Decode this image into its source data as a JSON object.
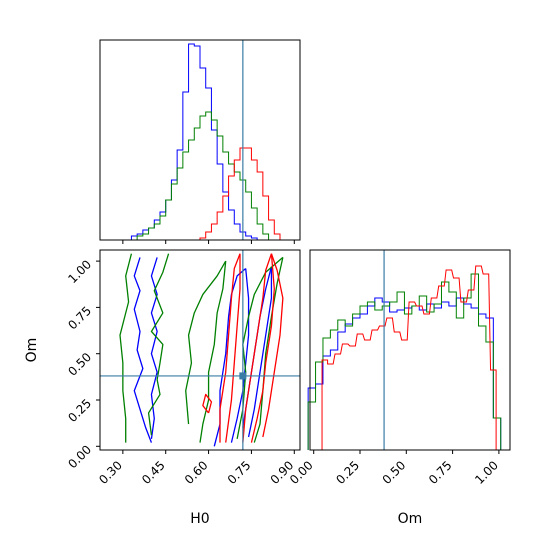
{
  "chart_data": [
    {
      "panel": "H0 marginal",
      "type": "step-histogram",
      "xlim": [
        0.22,
        0.92
      ],
      "truth_x": 0.72,
      "series": [
        {
          "color": "#0000ff",
          "x": [
            0.34,
            0.36,
            0.38,
            0.4,
            0.42,
            0.44,
            0.46,
            0.48,
            0.5,
            0.52,
            0.54,
            0.56,
            0.58,
            0.6,
            0.62,
            0.64,
            0.66,
            0.68,
            0.7,
            0.72,
            0.74,
            0.76
          ],
          "values": [
            0.02,
            0.03,
            0.05,
            0.06,
            0.1,
            0.14,
            0.2,
            0.3,
            0.45,
            0.74,
            0.98,
            0.97,
            0.86,
            0.76,
            0.55,
            0.38,
            0.24,
            0.15,
            0.08,
            0.04,
            0.02,
            0.01
          ]
        },
        {
          "color": "#008000",
          "x": [
            0.36,
            0.38,
            0.4,
            0.42,
            0.44,
            0.46,
            0.48,
            0.5,
            0.52,
            0.54,
            0.56,
            0.58,
            0.6,
            0.62,
            0.64,
            0.66,
            0.68,
            0.7,
            0.72,
            0.74,
            0.76,
            0.78,
            0.8
          ],
          "values": [
            0.02,
            0.03,
            0.06,
            0.08,
            0.12,
            0.2,
            0.28,
            0.36,
            0.44,
            0.5,
            0.56,
            0.62,
            0.64,
            0.6,
            0.52,
            0.44,
            0.38,
            0.34,
            0.3,
            0.24,
            0.16,
            0.08,
            0.03
          ]
        },
        {
          "color": "#ff0000",
          "x": [
            0.58,
            0.6,
            0.62,
            0.64,
            0.66,
            0.68,
            0.7,
            0.72,
            0.74,
            0.76,
            0.78,
            0.8,
            0.82,
            0.84
          ],
          "values": [
            0.01,
            0.04,
            0.08,
            0.14,
            0.22,
            0.32,
            0.4,
            0.46,
            0.46,
            0.4,
            0.34,
            0.22,
            0.1,
            0.03
          ]
        }
      ]
    },
    {
      "panel": "H0 vs Om joint",
      "type": "contour",
      "xlabel": "H0",
      "ylabel": "Om",
      "xlim": [
        0.22,
        0.92
      ],
      "ylim": [
        -0.02,
        1.06
      ],
      "xticks": [
        "0.30",
        "0.45",
        "0.60",
        "0.75",
        "0.90"
      ],
      "yticks": [
        "0.00",
        "0.25",
        "0.50",
        "0.75",
        "1.00"
      ],
      "truth": [
        0.72,
        0.38
      ],
      "series": [
        {
          "color": "#0000ff",
          "contours": [
            [
              [
                0.36,
                1.02
              ],
              [
                0.34,
                0.92
              ],
              [
                0.36,
                0.84
              ],
              [
                0.34,
                0.74
              ],
              [
                0.36,
                0.62
              ],
              [
                0.35,
                0.52
              ],
              [
                0.37,
                0.42
              ],
              [
                0.34,
                0.3
              ],
              [
                0.36,
                0.2
              ],
              [
                0.38,
                0.1
              ],
              [
                0.4,
                0.02
              ]
            ],
            [
              [
                0.42,
                1.02
              ],
              [
                0.4,
                0.92
              ],
              [
                0.42,
                0.82
              ],
              [
                0.4,
                0.72
              ],
              [
                0.42,
                0.62
              ],
              [
                0.4,
                0.5
              ],
              [
                0.42,
                0.4
              ],
              [
                0.4,
                0.28
              ],
              [
                0.41,
                0.15
              ],
              [
                0.4,
                0.04
              ]
            ],
            [
              [
                0.62,
                0.0
              ],
              [
                0.64,
                0.12
              ],
              [
                0.64,
                0.3
              ],
              [
                0.66,
                0.5
              ],
              [
                0.67,
                0.7
              ],
              [
                0.68,
                0.82
              ],
              [
                0.7,
                0.92
              ],
              [
                0.73,
                0.96
              ]
            ],
            [
              [
                0.73,
                0.96
              ],
              [
                0.74,
                0.8
              ],
              [
                0.74,
                0.6
              ],
              [
                0.73,
                0.45
              ],
              [
                0.72,
                0.3
              ],
              [
                0.7,
                0.15
              ],
              [
                0.68,
                0.02
              ]
            ],
            [
              [
                0.72,
                0.1
              ],
              [
                0.74,
                0.3
              ],
              [
                0.76,
                0.5
              ],
              [
                0.78,
                0.7
              ],
              [
                0.8,
                0.85
              ],
              [
                0.82,
                0.97
              ]
            ],
            [
              [
                0.82,
                0.97
              ],
              [
                0.82,
                0.8
              ],
              [
                0.8,
                0.6
              ],
              [
                0.78,
                0.4
              ],
              [
                0.76,
                0.2
              ],
              [
                0.74,
                0.05
              ]
            ]
          ]
        },
        {
          "color": "#008000",
          "contours": [
            [
              [
                0.33,
                1.04
              ],
              [
                0.31,
                0.92
              ],
              [
                0.32,
                0.78
              ],
              [
                0.29,
                0.6
              ],
              [
                0.3,
                0.45
              ],
              [
                0.3,
                0.3
              ],
              [
                0.31,
                0.15
              ],
              [
                0.31,
                0.02
              ]
            ],
            [
              [
                0.46,
                1.04
              ],
              [
                0.44,
                0.94
              ],
              [
                0.41,
                0.84
              ],
              [
                0.44,
                0.72
              ],
              [
                0.4,
                0.62
              ],
              [
                0.44,
                0.55
              ],
              [
                0.43,
                0.45
              ],
              [
                0.42,
                0.36
              ],
              [
                0.43,
                0.28
              ],
              [
                0.39,
                0.18
              ],
              [
                0.4,
                0.06
              ]
            ],
            [
              [
                0.53,
                0.12
              ],
              [
                0.52,
                0.3
              ],
              [
                0.54,
                0.45
              ],
              [
                0.53,
                0.6
              ],
              [
                0.55,
                0.72
              ],
              [
                0.58,
                0.82
              ],
              [
                0.63,
                0.92
              ],
              [
                0.66,
                1.0
              ]
            ],
            [
              [
                0.66,
                1.0
              ],
              [
                0.65,
                0.85
              ],
              [
                0.63,
                0.72
              ],
              [
                0.62,
                0.55
              ],
              [
                0.6,
                0.4
              ],
              [
                0.6,
                0.25
              ],
              [
                0.58,
                0.12
              ],
              [
                0.57,
                0.02
              ]
            ],
            [
              [
                0.7,
                0.04
              ],
              [
                0.72,
                0.2
              ],
              [
                0.73,
                0.4
              ],
              [
                0.72,
                0.55
              ],
              [
                0.74,
                0.7
              ],
              [
                0.76,
                0.82
              ],
              [
                0.8,
                0.94
              ],
              [
                0.86,
                1.02
              ]
            ],
            [
              [
                0.86,
                1.02
              ],
              [
                0.84,
                0.88
              ],
              [
                0.82,
                0.7
              ],
              [
                0.8,
                0.5
              ],
              [
                0.79,
                0.3
              ],
              [
                0.78,
                0.12
              ],
              [
                0.76,
                0.02
              ]
            ]
          ]
        },
        {
          "color": "#ff0000",
          "contours": [
            [
              [
                0.6,
                0.18
              ],
              [
                0.58,
                0.22
              ],
              [
                0.59,
                0.28
              ],
              [
                0.61,
                0.24
              ],
              [
                0.6,
                0.18
              ]
            ],
            [
              [
                0.64,
                0.02
              ],
              [
                0.64,
                0.2
              ],
              [
                0.66,
                0.4
              ],
              [
                0.67,
                0.6
              ],
              [
                0.68,
                0.8
              ],
              [
                0.69,
                0.96
              ],
              [
                0.71,
                1.04
              ]
            ],
            [
              [
                0.71,
                1.04
              ],
              [
                0.71,
                0.85
              ],
              [
                0.7,
                0.65
              ],
              [
                0.69,
                0.45
              ],
              [
                0.68,
                0.25
              ],
              [
                0.66,
                0.02
              ]
            ],
            [
              [
                0.72,
                0.02
              ],
              [
                0.73,
                0.2
              ],
              [
                0.75,
                0.4
              ],
              [
                0.77,
                0.6
              ],
              [
                0.79,
                0.8
              ],
              [
                0.8,
                0.95
              ],
              [
                0.82,
                1.04
              ]
            ],
            [
              [
                0.82,
                1.04
              ],
              [
                0.83,
                0.85
              ],
              [
                0.82,
                0.65
              ],
              [
                0.8,
                0.45
              ],
              [
                0.79,
                0.3
              ],
              [
                0.77,
                0.15
              ],
              [
                0.75,
                0.02
              ]
            ],
            [
              [
                0.82,
                1.04
              ],
              [
                0.84,
                0.95
              ],
              [
                0.86,
                0.8
              ],
              [
                0.85,
                0.6
              ],
              [
                0.83,
                0.4
              ],
              [
                0.81,
                0.2
              ],
              [
                0.79,
                0.05
              ]
            ]
          ]
        }
      ]
    },
    {
      "panel": "Om marginal",
      "type": "step-histogram",
      "xlabel": "Om",
      "xlim": [
        -0.02,
        1.06
      ],
      "xticks": [
        "0.00",
        "0.25",
        "0.50",
        "0.75",
        "1.00"
      ],
      "truth_x": 0.38,
      "series": [
        {
          "color": "#0000ff",
          "x": [
            -0.01,
            0.03,
            0.07,
            0.11,
            0.15,
            0.19,
            0.23,
            0.27,
            0.31,
            0.35,
            0.39,
            0.43,
            0.47,
            0.51,
            0.55,
            0.59,
            0.63,
            0.67,
            0.71,
            0.75,
            0.79,
            0.83,
            0.87,
            0.91,
            0.95,
            0.99
          ],
          "values": [
            0.31,
            0.33,
            0.47,
            0.5,
            0.59,
            0.63,
            0.66,
            0.68,
            0.72,
            0.76,
            0.74,
            0.69,
            0.7,
            0.71,
            0.72,
            0.7,
            0.73,
            0.71,
            0.74,
            0.72,
            0.76,
            0.73,
            0.71,
            0.68,
            0.66,
            0.16
          ]
        },
        {
          "color": "#008000",
          "x": [
            -0.01,
            0.03,
            0.07,
            0.11,
            0.15,
            0.19,
            0.23,
            0.27,
            0.31,
            0.35,
            0.39,
            0.43,
            0.47,
            0.51,
            0.55,
            0.59,
            0.63,
            0.67,
            0.71,
            0.75,
            0.79,
            0.83,
            0.87,
            0.91,
            0.95,
            0.99
          ],
          "values": [
            0.24,
            0.44,
            0.56,
            0.6,
            0.65,
            0.62,
            0.68,
            0.72,
            0.74,
            0.7,
            0.72,
            0.74,
            0.79,
            0.68,
            0.72,
            0.77,
            0.69,
            0.73,
            0.84,
            0.79,
            0.66,
            0.76,
            0.88,
            0.62,
            0.54,
            0.16
          ]
        },
        {
          "color": "#ff0000",
          "x": [
            0.06,
            0.09,
            0.13,
            0.17,
            0.21,
            0.25,
            0.29,
            0.33,
            0.37,
            0.41,
            0.45,
            0.49,
            0.53,
            0.57,
            0.61,
            0.65,
            0.69,
            0.73,
            0.77,
            0.81,
            0.85,
            0.89,
            0.93,
            0.97
          ],
          "values": [
            0.45,
            0.43,
            0.48,
            0.53,
            0.52,
            0.58,
            0.55,
            0.6,
            0.62,
            0.66,
            0.59,
            0.55,
            0.74,
            0.72,
            0.68,
            0.76,
            0.82,
            0.9,
            0.86,
            0.74,
            0.8,
            0.92,
            0.88,
            0.4
          ]
        }
      ]
    }
  ]
}
